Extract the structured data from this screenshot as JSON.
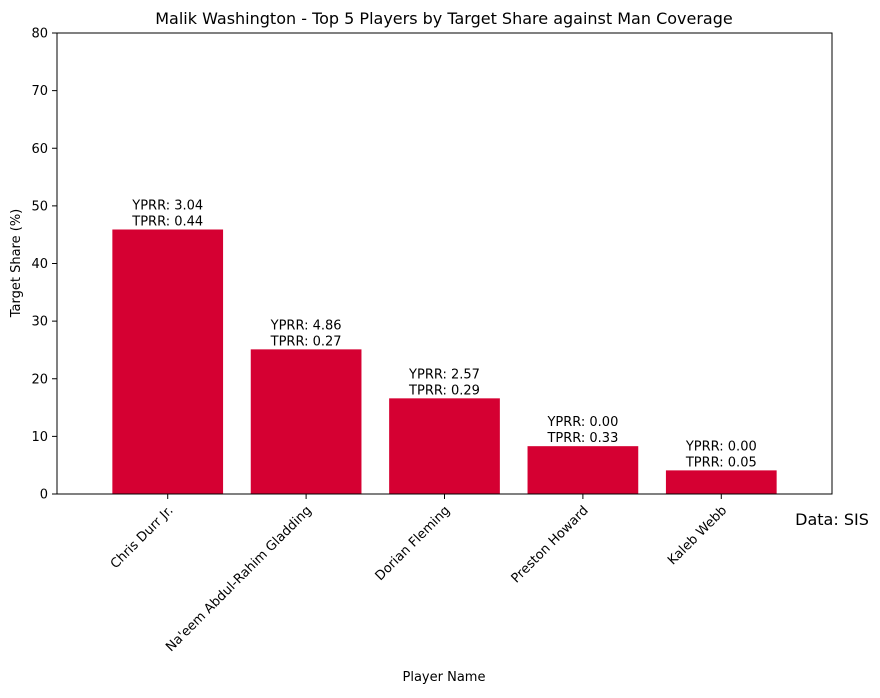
{
  "chart_data": {
    "type": "bar",
    "title": "Malik Washington - Top 5 Players by Target Share against Man Coverage",
    "xlabel": "Player Name",
    "ylabel": "Target Share (%)",
    "ylim": [
      0,
      80
    ],
    "yticks": [
      0,
      10,
      20,
      30,
      40,
      50,
      60,
      70,
      80
    ],
    "categories": [
      "Chris Durr Jr.",
      "Na'eem Abdul-Rahim Gladding",
      "Dorian Fleming",
      "Preston Howard",
      "Kaleb Webb"
    ],
    "values": [
      45.9,
      25.1,
      16.6,
      8.3,
      4.1
    ],
    "annotations": [
      [
        "YPRR: 3.04",
        "TPRR: 0.44"
      ],
      [
        "YPRR: 4.86",
        "TPRR: 0.27"
      ],
      [
        "YPRR: 2.57",
        "TPRR: 0.29"
      ],
      [
        "YPRR: 0.00",
        "TPRR: 0.33"
      ],
      [
        "YPRR: 0.00",
        "TPRR: 0.05"
      ]
    ],
    "source_note": "Data: SIS",
    "bar_color": "#d50032",
    "grid": false
  }
}
